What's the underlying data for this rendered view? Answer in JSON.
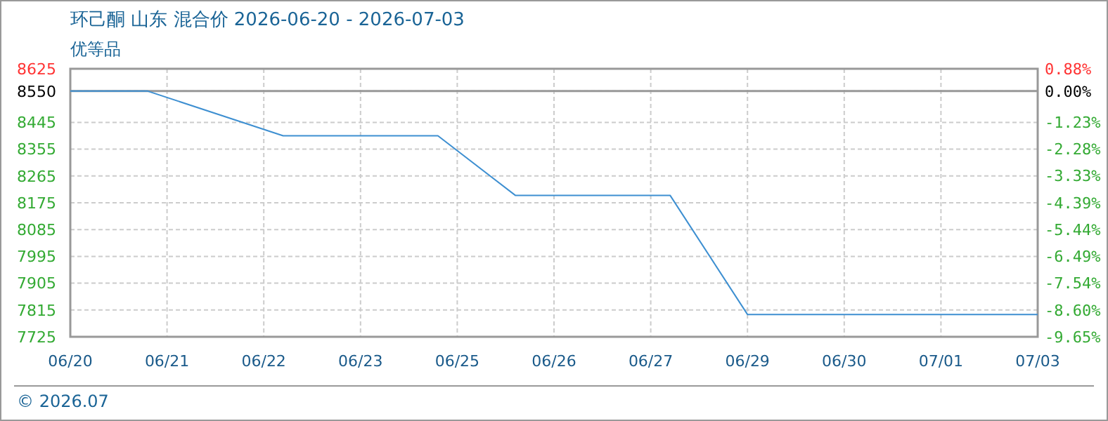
{
  "chart_data": {
    "type": "line",
    "title": "环己酮 山东 混合价 2026-06-20 - 2026-07-03",
    "subtitle": "优等品",
    "annotations": [
      "© 2026.07"
    ],
    "categories": [
      "06/20",
      null,
      null,
      null,
      null,
      "06/21",
      null,
      null,
      null,
      null,
      "06/22",
      null,
      null,
      null,
      null,
      "06/23",
      null,
      null,
      null,
      null,
      "06/25",
      null,
      null,
      null,
      null,
      "06/26",
      null,
      null,
      null,
      null,
      "06/27",
      null,
      null,
      null,
      null,
      "06/29",
      null,
      null,
      null,
      null,
      "06/30",
      null,
      null,
      null,
      null,
      "07/01",
      null,
      null,
      null,
      null,
      "07/03"
    ],
    "series": [
      {
        "color": "#3d8fd1",
        "values": [
          8550,
          null,
          null,
          null,
          8550,
          null,
          null,
          null,
          null,
          null,
          null,
          8400,
          null,
          null,
          null,
          null,
          null,
          null,
          null,
          8400,
          null,
          null,
          null,
          8200,
          null,
          null,
          null,
          null,
          null,
          null,
          null,
          8200,
          null,
          null,
          null,
          7800,
          null,
          null,
          null,
          null,
          null,
          null,
          null,
          null,
          null,
          null,
          null,
          null,
          null,
          null,
          7800
        ]
      }
    ],
    "ylim": [
      7725,
      8625
    ],
    "yticks": [
      8625,
      8550,
      8445,
      8355,
      8265,
      8175,
      8085,
      7995,
      7905,
      7815,
      7725
    ],
    "y2lim": [
      -9.65,
      0.88
    ],
    "y2ticks": [
      {
        "value": 0.88,
        "label": "0.88%"
      },
      {
        "value": 0,
        "label": "0.00%"
      },
      {
        "value": -1.23,
        "label": "-1.23%"
      },
      {
        "value": -2.28,
        "label": "-2.28%"
      },
      {
        "value": -3.33,
        "label": "-3.33%"
      },
      {
        "value": -4.39,
        "label": "-4.39%"
      },
      {
        "value": -5.44,
        "label": "-5.44%"
      },
      {
        "value": -6.49,
        "label": "-6.49%"
      },
      {
        "value": -7.54,
        "label": "-7.54%"
      },
      {
        "value": -8.6,
        "label": "-8.60%"
      },
      {
        "value": -9.65,
        "label": "-9.65%"
      }
    ],
    "ref_lines": [
      {
        "axis": "y",
        "value": 8550,
        "color": "#999999"
      }
    ],
    "grid": true
  }
}
